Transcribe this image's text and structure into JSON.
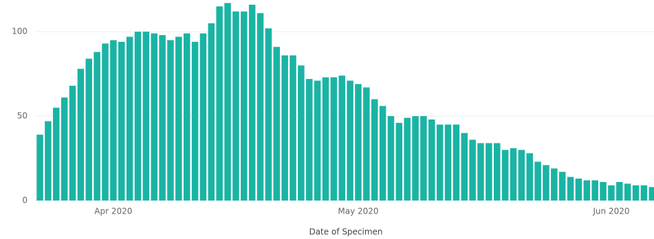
{
  "chart_data": {
    "type": "bar",
    "x_label": "Date of Specimen",
    "categories": [
      null,
      null,
      null,
      null,
      null,
      null,
      null,
      null,
      null,
      "Apr 2020",
      null,
      null,
      null,
      null,
      null,
      null,
      null,
      null,
      null,
      null,
      null,
      null,
      null,
      null,
      null,
      null,
      null,
      null,
      null,
      null,
      null,
      null,
      null,
      null,
      null,
      null,
      null,
      null,
      null,
      "May 2020",
      null,
      null,
      null,
      null,
      null,
      null,
      null,
      null,
      null,
      null,
      null,
      null,
      null,
      null,
      null,
      null,
      null,
      null,
      null,
      null,
      null,
      null,
      null,
      null,
      null,
      null,
      null,
      null,
      null,
      null,
      "Jun 2020",
      null,
      null,
      null,
      null,
      null
    ],
    "values": [
      39,
      47,
      55,
      61,
      68,
      78,
      84,
      88,
      93,
      95,
      94,
      97,
      100,
      100,
      99,
      98,
      95,
      97,
      99,
      94,
      99,
      105,
      115,
      117,
      112,
      112,
      116,
      111,
      102,
      91,
      86,
      86,
      80,
      72,
      71,
      73,
      73,
      74,
      71,
      69,
      67,
      60,
      56,
      50,
      46,
      49,
      50,
      50,
      48,
      45,
      45,
      45,
      40,
      36,
      34,
      34,
      34,
      30,
      31,
      30,
      28,
      23,
      21,
      19,
      17,
      14,
      13,
      12,
      12,
      11,
      9,
      11,
      10,
      9,
      9,
      8
    ],
    "color": "#1ab4a4",
    "ylim": [
      0,
      120
    ],
    "yticks": [
      0,
      50,
      100
    ],
    "grid": true
  }
}
